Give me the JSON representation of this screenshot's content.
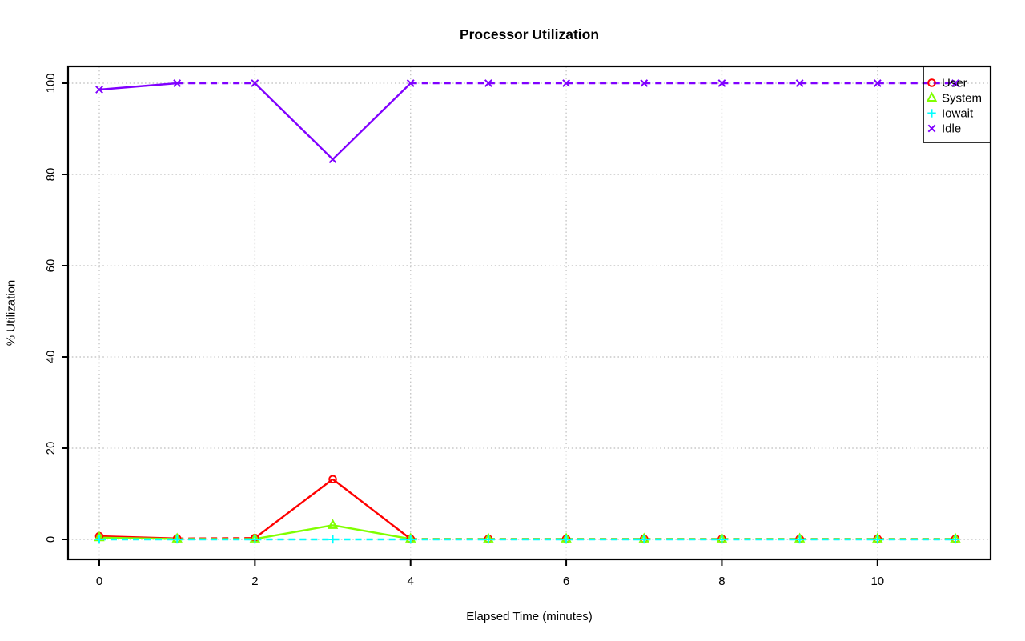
{
  "chart_data": {
    "type": "line",
    "title": "Processor Utilization",
    "xlabel": "Elapsed Time (minutes)",
    "ylabel": "% Utilization",
    "x": [
      0,
      1,
      2,
      3,
      4,
      5,
      6,
      7,
      8,
      9,
      10,
      11
    ],
    "series": [
      {
        "name": "User",
        "color": "#FF0000",
        "marker": "circle",
        "values": [
          0.7,
          0.2,
          0.3,
          13.2,
          0.1,
          0.1,
          0.1,
          0.1,
          0.1,
          0.1,
          0.1,
          0.1
        ]
      },
      {
        "name": "System",
        "color": "#80FF00",
        "marker": "triangle",
        "values": [
          0.4,
          0.1,
          0.1,
          3.1,
          0.1,
          0.1,
          0.1,
          0.1,
          0.1,
          0.1,
          0.1,
          0.1
        ]
      },
      {
        "name": "Iowait",
        "color": "#00FFFF",
        "marker": "plus",
        "values": [
          0,
          0,
          0,
          0,
          0,
          0,
          0,
          0,
          0,
          0,
          0,
          0
        ]
      },
      {
        "name": "Idle",
        "color": "#8000FF",
        "marker": "x",
        "values": [
          98.6,
          100,
          100,
          83.3,
          100,
          100,
          100,
          100,
          100,
          100,
          100,
          100
        ]
      }
    ],
    "xticks": [
      0,
      2,
      4,
      6,
      8,
      10
    ],
    "yticks": [
      0,
      20,
      40,
      60,
      80,
      100
    ],
    "xlim": [
      0,
      11
    ],
    "ylim": [
      0,
      100
    ],
    "grid": true,
    "grid_style": "dotted",
    "grid_color": "#c8c8c8",
    "axis_color": "#000000",
    "legend": {
      "position": "topright",
      "labels": [
        "User",
        "System",
        "Iowait",
        "Idle"
      ]
    }
  }
}
